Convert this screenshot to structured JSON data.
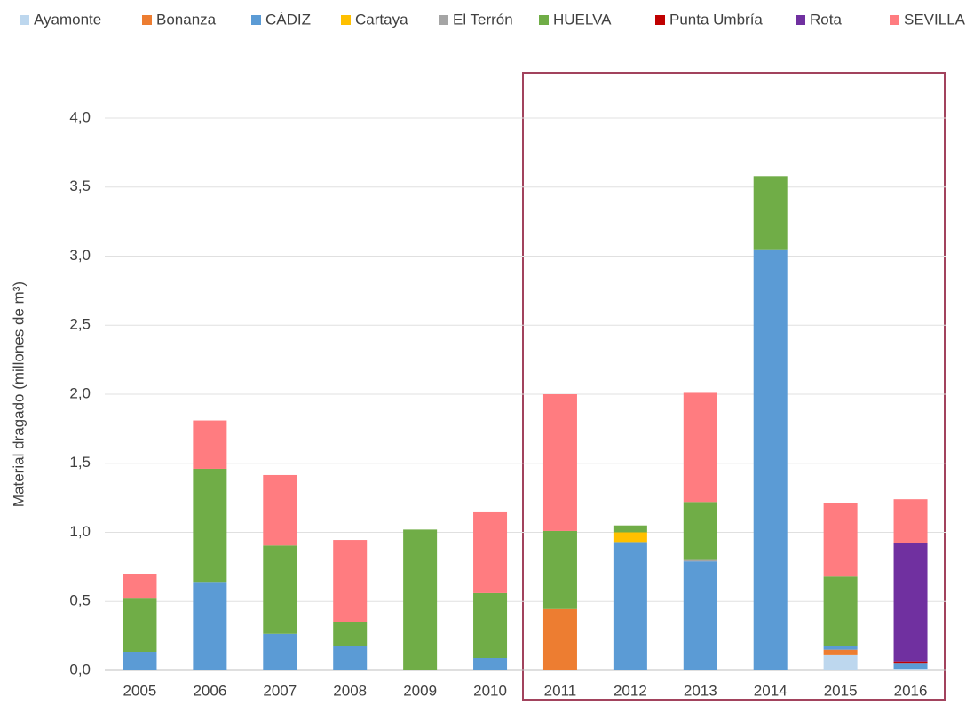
{
  "chart_data": {
    "type": "stacked_bar",
    "y_label": "Material dragado (millones de m³)",
    "categories": [
      "2005",
      "2006",
      "2007",
      "2008",
      "2009",
      "2010",
      "2011",
      "2012",
      "2013",
      "2014",
      "2015",
      "2016"
    ],
    "series": [
      {
        "name": "Ayamonte",
        "color": "#bdd7ee",
        "values": [
          0,
          0,
          0,
          0,
          0,
          0,
          0,
          0,
          0,
          0,
          0.11,
          0.01
        ]
      },
      {
        "name": "Bonanza",
        "color": "#ed7d31",
        "values": [
          0,
          0,
          0,
          0,
          0,
          0,
          0.445,
          0,
          0,
          0,
          0.04,
          0
        ]
      },
      {
        "name": "CÁDIZ",
        "color": "#5b9bd5",
        "values": [
          0.135,
          0.635,
          0.265,
          0.175,
          0,
          0.09,
          0,
          0.93,
          0.79,
          3.05,
          0.03,
          0.04
        ]
      },
      {
        "name": "Cartaya",
        "color": "#ffc000",
        "values": [
          0,
          0,
          0,
          0,
          0,
          0,
          0,
          0.07,
          0,
          0,
          0,
          0
        ]
      },
      {
        "name": "El Terrón",
        "color": "#a5a5a5",
        "values": [
          0,
          0,
          0,
          0,
          0,
          0,
          0,
          0,
          0.01,
          0,
          0,
          0
        ]
      },
      {
        "name": "HUELVA",
        "color": "#70ad47",
        "values": [
          0.385,
          0.825,
          0.64,
          0.175,
          1.02,
          0.47,
          0.565,
          0.05,
          0.42,
          0.53,
          0.5,
          0
        ]
      },
      {
        "name": "Punta Umbría",
        "color": "#c00000",
        "values": [
          0,
          0,
          0,
          0,
          0,
          0,
          0,
          0,
          0,
          0,
          0,
          0.01
        ]
      },
      {
        "name": "Rota",
        "color": "#7030a0",
        "values": [
          0,
          0,
          0,
          0,
          0,
          0,
          0,
          0,
          0,
          0,
          0,
          0.86
        ]
      },
      {
        "name": "SEVILLA",
        "color": "#ff7c80",
        "values": [
          0.175,
          0.35,
          0.51,
          0.595,
          0,
          0.585,
          0.99,
          0,
          0.79,
          0,
          0.53,
          0.32
        ]
      }
    ],
    "ylim": [
      0,
      4
    ],
    "yticks": [
      {
        "value": 0,
        "label": "0,0"
      },
      {
        "value": 0.5,
        "label": "0,5"
      },
      {
        "value": 1,
        "label": "1,0"
      },
      {
        "value": 1.5,
        "label": "1,5"
      },
      {
        "value": 2,
        "label": "2,0"
      },
      {
        "value": 2.5,
        "label": "2,5"
      },
      {
        "value": 3,
        "label": "3,0"
      },
      {
        "value": 3.5,
        "label": "3,5"
      },
      {
        "value": 4,
        "label": "4,0"
      }
    ],
    "grid": true
  }
}
